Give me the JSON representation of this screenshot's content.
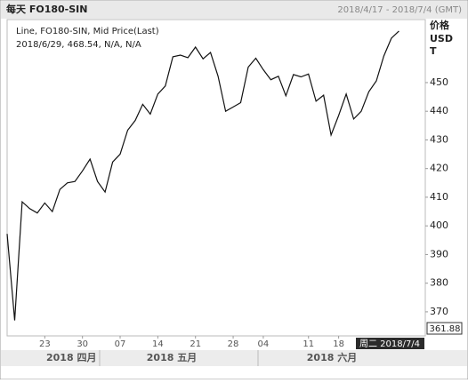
{
  "chart_data": {
    "type": "line",
    "title": "每天 FO180-SIN",
    "date_range": "2018/4/17 - 2018/7/4 (GMT)",
    "y_label": [
      "价格",
      "USD",
      "T"
    ],
    "legend_lines": [
      "Line, FO180-SIN, Mid Price(Last)",
      "2018/6/29, 468.54, N/A, N/A"
    ],
    "months": [
      "2018 四月",
      "2018 五月",
      "2018 六月"
    ],
    "cursor_label": "周二 2018/7/4",
    "value_box": "361.88",
    "categories": [
      null,
      null,
      null,
      null,
      null,
      "23",
      null,
      null,
      null,
      null,
      "30",
      null,
      null,
      null,
      null,
      "07",
      null,
      null,
      null,
      null,
      "14",
      null,
      null,
      null,
      null,
      "21",
      null,
      null,
      null,
      null,
      "28",
      null,
      null,
      null,
      "04",
      null,
      null,
      null,
      null,
      null,
      "11",
      null,
      null,
      null,
      "18",
      null,
      null,
      null,
      null,
      null,
      null,
      null,
      null,
      null,
      null,
      null
    ],
    "series": [
      {
        "name": "FO180-SIN",
        "color": "#111111",
        "values": [
          397.2,
          367,
          408.4,
          406,
          404.5,
          408,
          405,
          412.7,
          415,
          415.5,
          419.2,
          423.3,
          415.5,
          411.8,
          422.3,
          425,
          433.4,
          436.8,
          442.4,
          439,
          446,
          448.8,
          459,
          459.6,
          458.7,
          462.4,
          458.3,
          460.5,
          452.2,
          440,
          441.5,
          443,
          455.4,
          458.5,
          454.5,
          451,
          452.2,
          445.4,
          452.8,
          452,
          453,
          443.5,
          445.6,
          431.7,
          438.5,
          446,
          437.3,
          440,
          446.8,
          450.6,
          459.3,
          465.5,
          468,
          null,
          null,
          null
        ]
      }
    ],
    "ylim": [
      361.6,
      472
    ],
    "yticks": [
      370,
      380,
      390,
      400,
      410,
      420,
      430,
      440,
      450
    ],
    "grid": false
  }
}
